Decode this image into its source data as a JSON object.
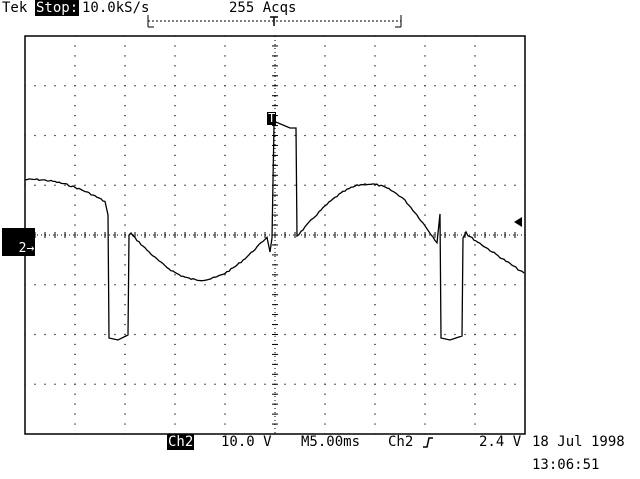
{
  "header": {
    "brand": "Tek",
    "run_state": "Stop:",
    "sample_rate": "10.0kS/s",
    "acquisitions": "255 Acqs"
  },
  "markers": {
    "channel_marker": "2",
    "trigger_marker": "T"
  },
  "footer": {
    "channel": "Ch2",
    "volts_per_div": "10.0 V",
    "timebase": "M5.00ms",
    "trigger_source": "Ch2",
    "trigger_slope_icon": "rising-edge-icon",
    "trigger_level": "2.4 V",
    "date": "18 Jul 1998",
    "time": "13:06:51"
  },
  "colors": {
    "background": "#ffffff",
    "trace": "#000000"
  }
}
